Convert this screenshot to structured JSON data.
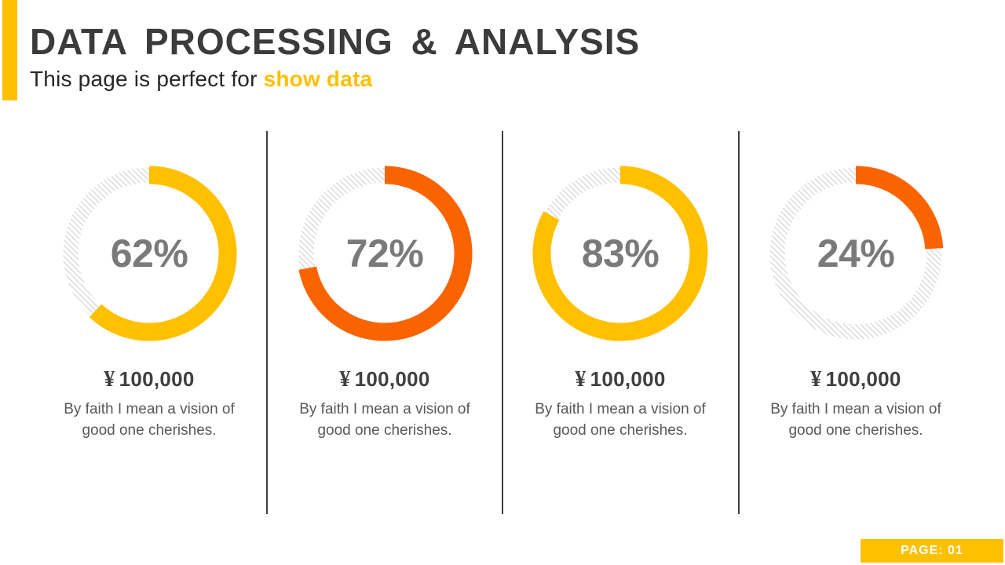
{
  "header": {
    "title": "DATA PROCESSING & ANALYSIS",
    "subtitle_prefix": "This page is perfect for ",
    "subtitle_highlight": "show data"
  },
  "footer": {
    "page_label": "PAGE: 01"
  },
  "colors": {
    "gold": "#FFC000",
    "orange": "#FA6400",
    "title_text": "#3B3B3B",
    "percent_text": "#7A7A7A",
    "body_text": "#595959",
    "divider": "#3F3F3F",
    "hatch_track": "#CDCDCD",
    "badge_text": "#FFFFFF"
  },
  "chart_data": [
    {
      "type": "donut",
      "value": 62,
      "label": "62%",
      "color": "#FFC000",
      "track_style": "diagonal-hatch",
      "start": "12-oclock",
      "direction": "clockwise",
      "currency": "¥",
      "amount": "100,000",
      "caption": "By faith I mean a vision of good one cherishes."
    },
    {
      "type": "donut",
      "value": 72,
      "label": "72%",
      "color": "#FA6400",
      "track_style": "diagonal-hatch",
      "start": "12-oclock",
      "direction": "clockwise",
      "currency": "¥",
      "amount": "100,000",
      "caption": "By faith I mean a vision of good one cherishes."
    },
    {
      "type": "donut",
      "value": 83,
      "label": "83%",
      "color": "#FFC000",
      "track_style": "diagonal-hatch",
      "start": "12-oclock",
      "direction": "clockwise",
      "currency": "¥",
      "amount": "100,000",
      "caption": "By faith I mean a vision of good one cherishes."
    },
    {
      "type": "donut",
      "value": 24,
      "label": "24%",
      "color": "#FA6400",
      "track_style": "diagonal-hatch",
      "start": "12-oclock",
      "direction": "clockwise",
      "currency": "¥",
      "amount": "100,000",
      "caption": "By faith I mean a vision of good one cherishes."
    }
  ]
}
